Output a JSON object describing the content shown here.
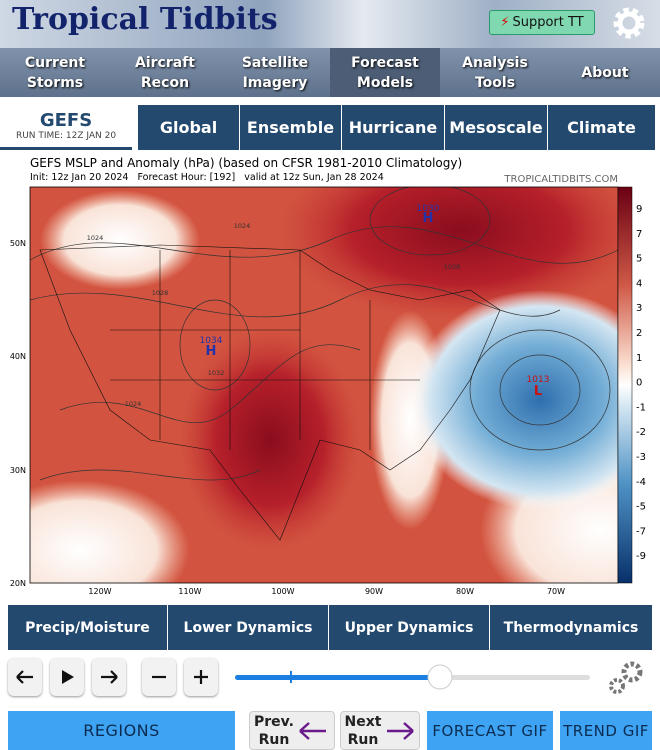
{
  "header": {
    "title": "Tropical Tidbits",
    "support": "Support TT"
  },
  "nav": [
    "Current Storms",
    "Aircraft Recon",
    "Satellite Imagery",
    "Forecast Models",
    "Analysis Tools",
    "About"
  ],
  "model": {
    "name": "GEFS",
    "run_time": "RUN TIME: 12Z JAN 20"
  },
  "tabs": [
    "Global",
    "Ensemble",
    "Hurricane",
    "Mesoscale",
    "Climate"
  ],
  "map": {
    "title": "GEFS MSLP and Anomaly (hPa) (based on CFSR 1981-2010 Climatology)",
    "init": "Init: 12z Jan 20 2024   Forecast Hour: [192]   valid at 12z Sun, Jan 28 2024",
    "watermark": "TROPICALTIDBITS.COM",
    "lat_labels": [
      "50N",
      "40N",
      "30N",
      "20N"
    ],
    "lon_labels": [
      "120W",
      "110W",
      "100W",
      "90W",
      "80W",
      "70W"
    ],
    "colorbar": [
      9,
      7,
      5,
      4,
      3,
      2,
      1,
      0,
      -1,
      -2,
      -3,
      -4,
      -5,
      -7,
      -9
    ],
    "centers": [
      {
        "pressure": "1030",
        "letter": "H"
      },
      {
        "pressure": "1034",
        "letter": "H"
      },
      {
        "pressure": "1013",
        "letter": "L"
      }
    ],
    "isobars": [
      "1024",
      "1024",
      "1028",
      "1032",
      "1024",
      "1028"
    ]
  },
  "categories": [
    "Precip/Moisture",
    "Lower Dynamics",
    "Upper Dynamics",
    "Thermodynamics"
  ],
  "buttons": {
    "regions": "REGIONS",
    "prev": "Prev. Run",
    "next": "Next Run",
    "forecast_gif": "FORECAST GIF",
    "trend_gif": "TREND GIF"
  }
}
